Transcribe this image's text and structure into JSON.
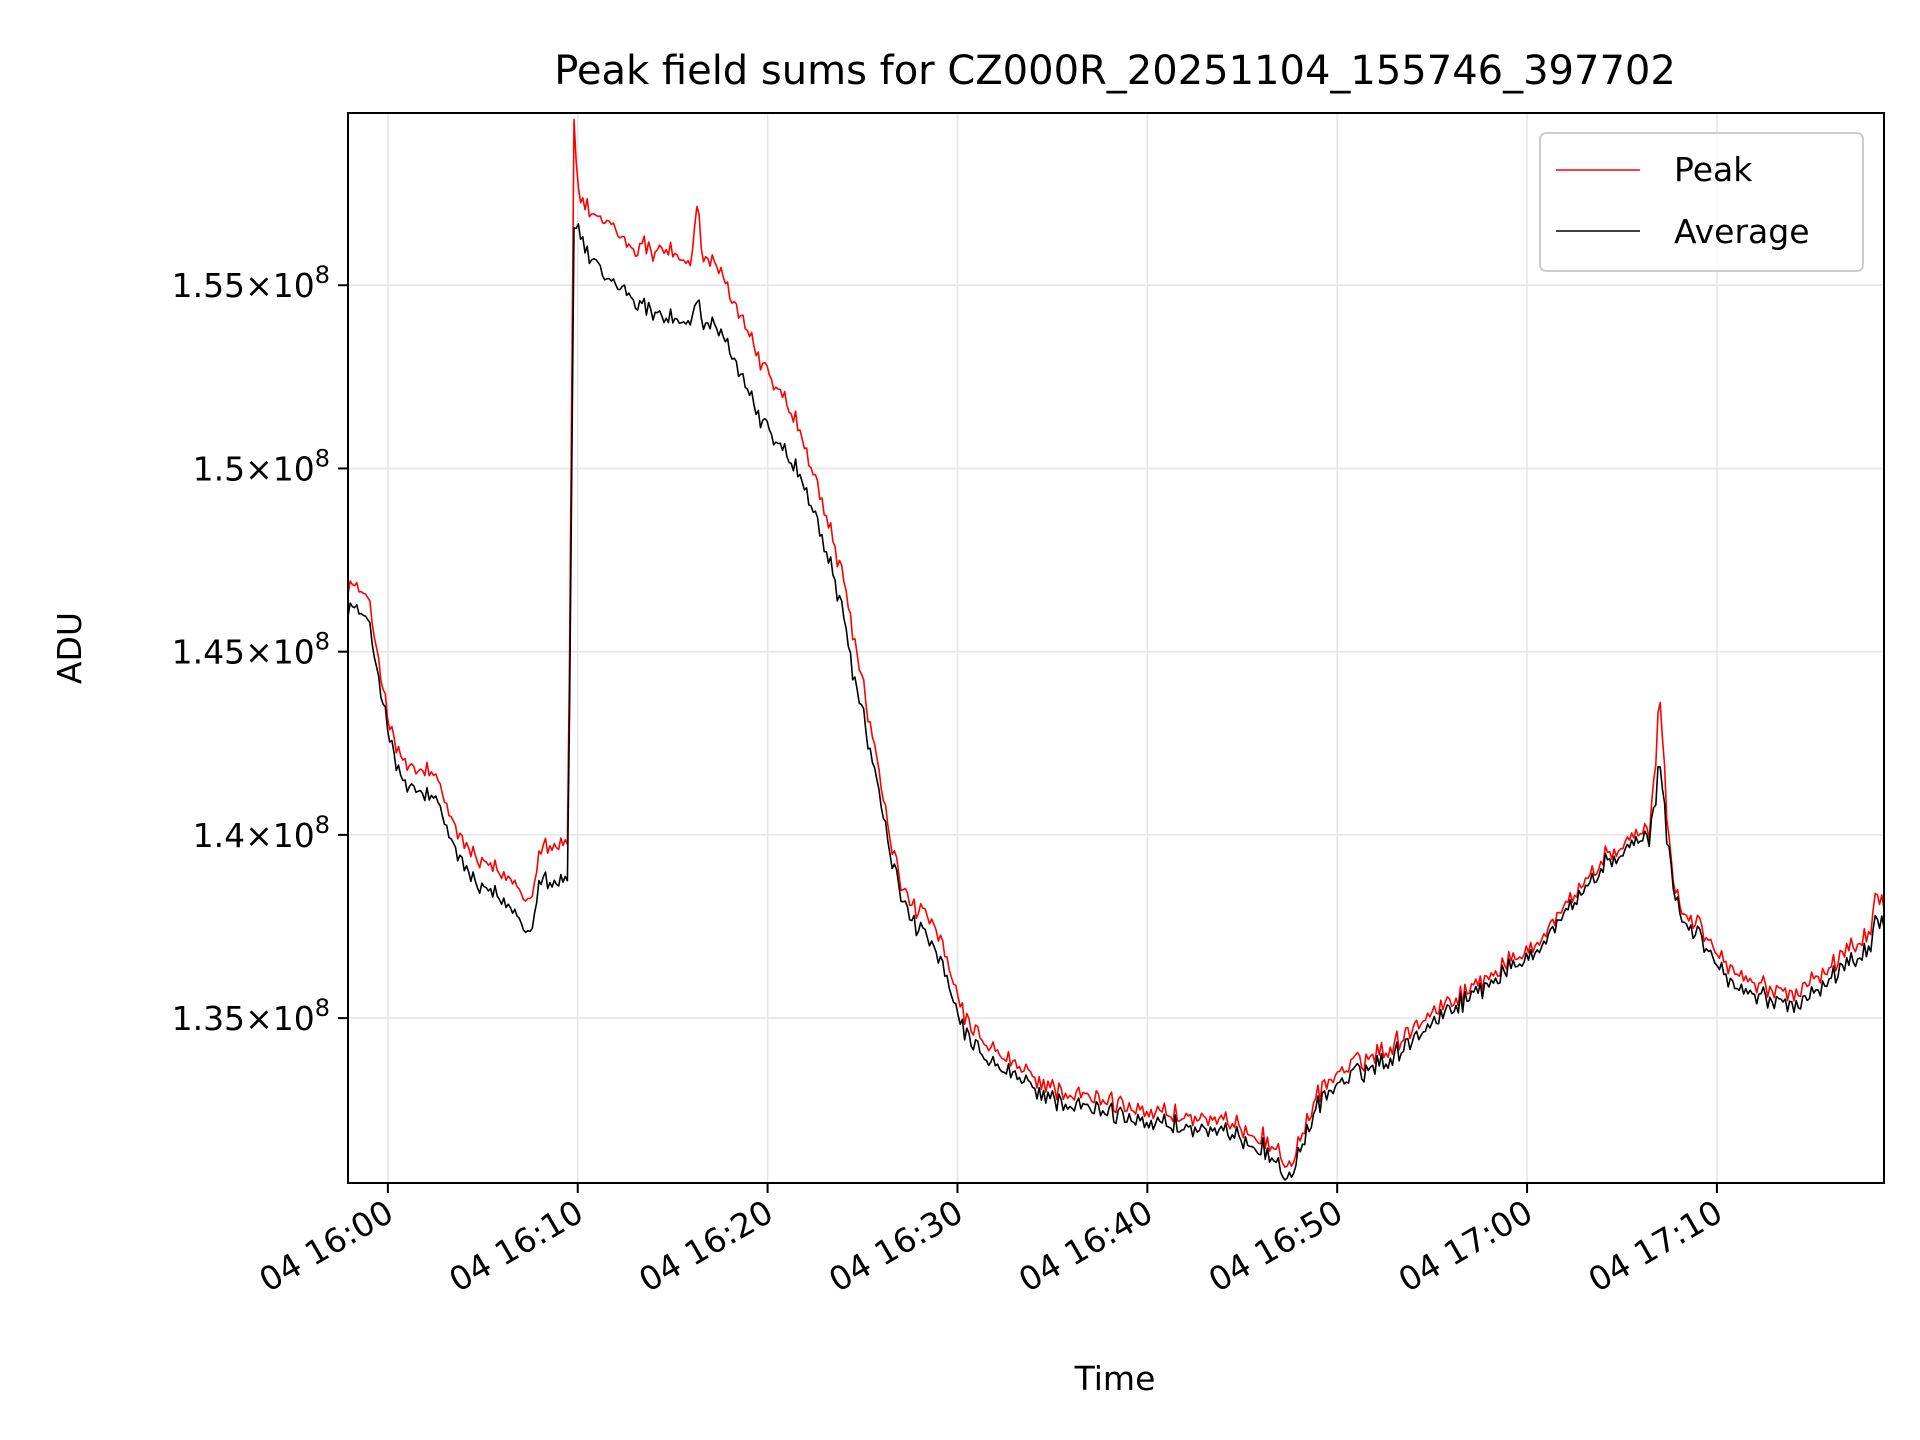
{
  "chart_data": {
    "type": "line",
    "title": "Peak field sums for CZ000R_20251104_155746_397702",
    "xlabel": "Time",
    "ylabel": "ADU",
    "x_unit": "minutes since 15:50",
    "xlim": [
      7.9,
      88.8
    ],
    "ylim": [
      130500000,
      159700000
    ],
    "grid": true,
    "legend_position": "top-right",
    "x_ticks": [
      {
        "value": 10,
        "label": "04 16:00"
      },
      {
        "value": 20,
        "label": "04 16:10"
      },
      {
        "value": 30,
        "label": "04 16:20"
      },
      {
        "value": 40,
        "label": "04 16:30"
      },
      {
        "value": 50,
        "label": "04 16:40"
      },
      {
        "value": 60,
        "label": "04 16:50"
      },
      {
        "value": 70,
        "label": "04 17:00"
      },
      {
        "value": 80,
        "label": "04 17:10"
      }
    ],
    "y_ticks": [
      {
        "value": 135000000,
        "mantissa": "1.35",
        "exponent": "8"
      },
      {
        "value": 140000000,
        "mantissa": "1.4",
        "exponent": "8"
      },
      {
        "value": 145000000,
        "mantissa": "1.45",
        "exponent": "8"
      },
      {
        "value": 150000000,
        "mantissa": "1.5",
        "exponent": "8"
      },
      {
        "value": 155000000,
        "mantissa": "1.55",
        "exponent": "8"
      }
    ],
    "series": [
      {
        "name": "Peak",
        "color": "#ff0000",
        "x": [
          7.9,
          8.5,
          9.0,
          9.5,
          10.0,
          10.5,
          11.0,
          11.5,
          12.0,
          12.5,
          13.0,
          13.5,
          14.0,
          14.5,
          15.0,
          15.5,
          16.0,
          16.5,
          17.0,
          17.5,
          18.0,
          18.5,
          19.0,
          19.5,
          19.8,
          20.0,
          20.2,
          20.5,
          21.0,
          21.5,
          22.0,
          22.5,
          23.0,
          23.5,
          24.0,
          24.5,
          25.0,
          25.5,
          26.0,
          26.3,
          26.5,
          27.0,
          27.5,
          28.0,
          28.5,
          29.0,
          29.5,
          30.0,
          30.5,
          31.0,
          31.5,
          32.0,
          32.5,
          33.0,
          33.5,
          34.0,
          34.5,
          35.0,
          35.5,
          36.0,
          36.5,
          37.0,
          37.5,
          38.0,
          38.5,
          39.0,
          39.5,
          40.0,
          40.5,
          41.0,
          41.5,
          42.0,
          43.0,
          44.0,
          45.0,
          46.0,
          47.0,
          48.0,
          49.0,
          50.0,
          51.0,
          52.0,
          53.0,
          54.0,
          55.0,
          56.0,
          56.5,
          57.0,
          57.5,
          58.0,
          58.5,
          59.0,
          60.0,
          61.0,
          62.0,
          63.0,
          64.0,
          65.0,
          66.0,
          67.0,
          68.0,
          69.0,
          70.0,
          71.0,
          72.0,
          73.0,
          74.0,
          75.0,
          75.5,
          76.0,
          76.5,
          77.0,
          77.5,
          78.0,
          79.0,
          80.0,
          81.0,
          82.0,
          83.0,
          84.0,
          85.0,
          86.0,
          87.0,
          88.0,
          88.5,
          88.8
        ],
        "values": [
          146900000,
          146700000,
          146300000,
          144900000,
          143200000,
          142200000,
          141900000,
          141700000,
          141800000,
          141500000,
          140900000,
          140300000,
          139700000,
          139500000,
          139200000,
          139100000,
          138900000,
          138800000,
          138500000,
          138200000,
          139700000,
          139800000,
          139700000,
          139900000,
          159700000,
          157500000,
          157300000,
          157100000,
          156700000,
          156800000,
          156500000,
          156200000,
          156000000,
          156100000,
          155900000,
          156100000,
          155900000,
          155700000,
          155500000,
          157500000,
          155900000,
          155600000,
          155300000,
          154800000,
          154300000,
          153700000,
          153100000,
          152600000,
          152200000,
          151800000,
          151300000,
          150500000,
          149700000,
          148900000,
          147900000,
          146900000,
          145600000,
          144100000,
          142800000,
          141300000,
          139800000,
          138700000,
          138200000,
          137900000,
          137700000,
          137200000,
          136400000,
          135600000,
          134900000,
          134500000,
          134300000,
          134100000,
          133700000,
          133400000,
          133100000,
          132900000,
          132800000,
          132700000,
          132600000,
          132500000,
          132400000,
          132300000,
          132200000,
          132100000,
          132000000,
          131800000,
          131500000,
          131300000,
          131000000,
          131500000,
          132200000,
          133000000,
          133500000,
          133800000,
          134000000,
          134300000,
          134800000,
          135200000,
          135500000,
          135800000,
          136200000,
          136500000,
          136900000,
          137400000,
          138100000,
          138700000,
          139300000,
          139700000,
          139900000,
          140000000,
          140200000,
          143800000,
          139500000,
          138000000,
          137600000,
          136800000,
          136200000,
          135900000,
          135800000,
          135700000,
          136100000,
          136400000,
          136900000,
          137300000,
          138600000,
          137800000
        ],
        "noise_amplitude": 180000
      },
      {
        "name": "Average",
        "color": "#000000",
        "x": [
          7.9,
          8.5,
          9.0,
          9.5,
          10.0,
          10.5,
          11.0,
          11.5,
          12.0,
          12.5,
          13.0,
          13.5,
          14.0,
          14.5,
          15.0,
          15.5,
          16.0,
          16.5,
          17.0,
          17.5,
          18.0,
          18.5,
          19.0,
          19.5,
          19.8,
          20.0,
          20.2,
          20.5,
          21.0,
          21.5,
          22.0,
          22.5,
          23.0,
          23.5,
          24.0,
          24.5,
          25.0,
          25.5,
          26.0,
          26.3,
          26.5,
          27.0,
          27.5,
          28.0,
          28.5,
          29.0,
          29.5,
          30.0,
          30.5,
          31.0,
          31.5,
          32.0,
          32.5,
          33.0,
          33.5,
          34.0,
          34.5,
          35.0,
          35.5,
          36.0,
          36.5,
          37.0,
          37.5,
          38.0,
          38.5,
          39.0,
          39.5,
          40.0,
          40.5,
          41.0,
          41.5,
          42.0,
          43.0,
          44.0,
          45.0,
          46.0,
          47.0,
          48.0,
          49.0,
          50.0,
          51.0,
          52.0,
          53.0,
          54.0,
          55.0,
          56.0,
          56.5,
          57.0,
          57.5,
          58.0,
          58.5,
          59.0,
          60.0,
          61.0,
          62.0,
          63.0,
          64.0,
          65.0,
          66.0,
          67.0,
          68.0,
          69.0,
          70.0,
          71.0,
          72.0,
          73.0,
          74.0,
          75.0,
          75.5,
          76.0,
          76.5,
          77.0,
          77.5,
          78.0,
          79.0,
          80.0,
          81.0,
          82.0,
          83.0,
          84.0,
          85.0,
          86.0,
          87.0,
          88.0,
          88.5,
          88.8
        ],
        "values": [
          146300000,
          146100000,
          145700000,
          144400000,
          142900000,
          141700000,
          141300000,
          141200000,
          141100000,
          140900000,
          140300000,
          139700000,
          139100000,
          138800000,
          138500000,
          138400000,
          138200000,
          138000000,
          137700000,
          137300000,
          138900000,
          138800000,
          138700000,
          138900000,
          156700000,
          156500000,
          156300000,
          155800000,
          155500000,
          155200000,
          155000000,
          154900000,
          154600000,
          154400000,
          154300000,
          154200000,
          154100000,
          154000000,
          153900000,
          154800000,
          154000000,
          153900000,
          153600000,
          153300000,
          152700000,
          152100000,
          151500000,
          151100000,
          150700000,
          150400000,
          150000000,
          149400000,
          148700000,
          147900000,
          147000000,
          145900000,
          144500000,
          143300000,
          142100000,
          140800000,
          139400000,
          138400000,
          137800000,
          137400000,
          137100000,
          136600000,
          135900000,
          135100000,
          134500000,
          134100000,
          133900000,
          133700000,
          133400000,
          133100000,
          132800000,
          132600000,
          132500000,
          132400000,
          132300000,
          132200000,
          132100000,
          132000000,
          131900000,
          131800000,
          131700000,
          131500000,
          131200000,
          130900000,
          130700000,
          131200000,
          131900000,
          132700000,
          133200000,
          133500000,
          133700000,
          134000000,
          134500000,
          134900000,
          135300000,
          135600000,
          136000000,
          136300000,
          136700000,
          137200000,
          137900000,
          138500000,
          139100000,
          139500000,
          139700000,
          139800000,
          140000000,
          142000000,
          139300000,
          137800000,
          137300000,
          136500000,
          135800000,
          135600000,
          135500000,
          135400000,
          135700000,
          136100000,
          136500000,
          136900000,
          137900000,
          137300000
        ],
        "noise_amplitude": 180000
      }
    ]
  }
}
